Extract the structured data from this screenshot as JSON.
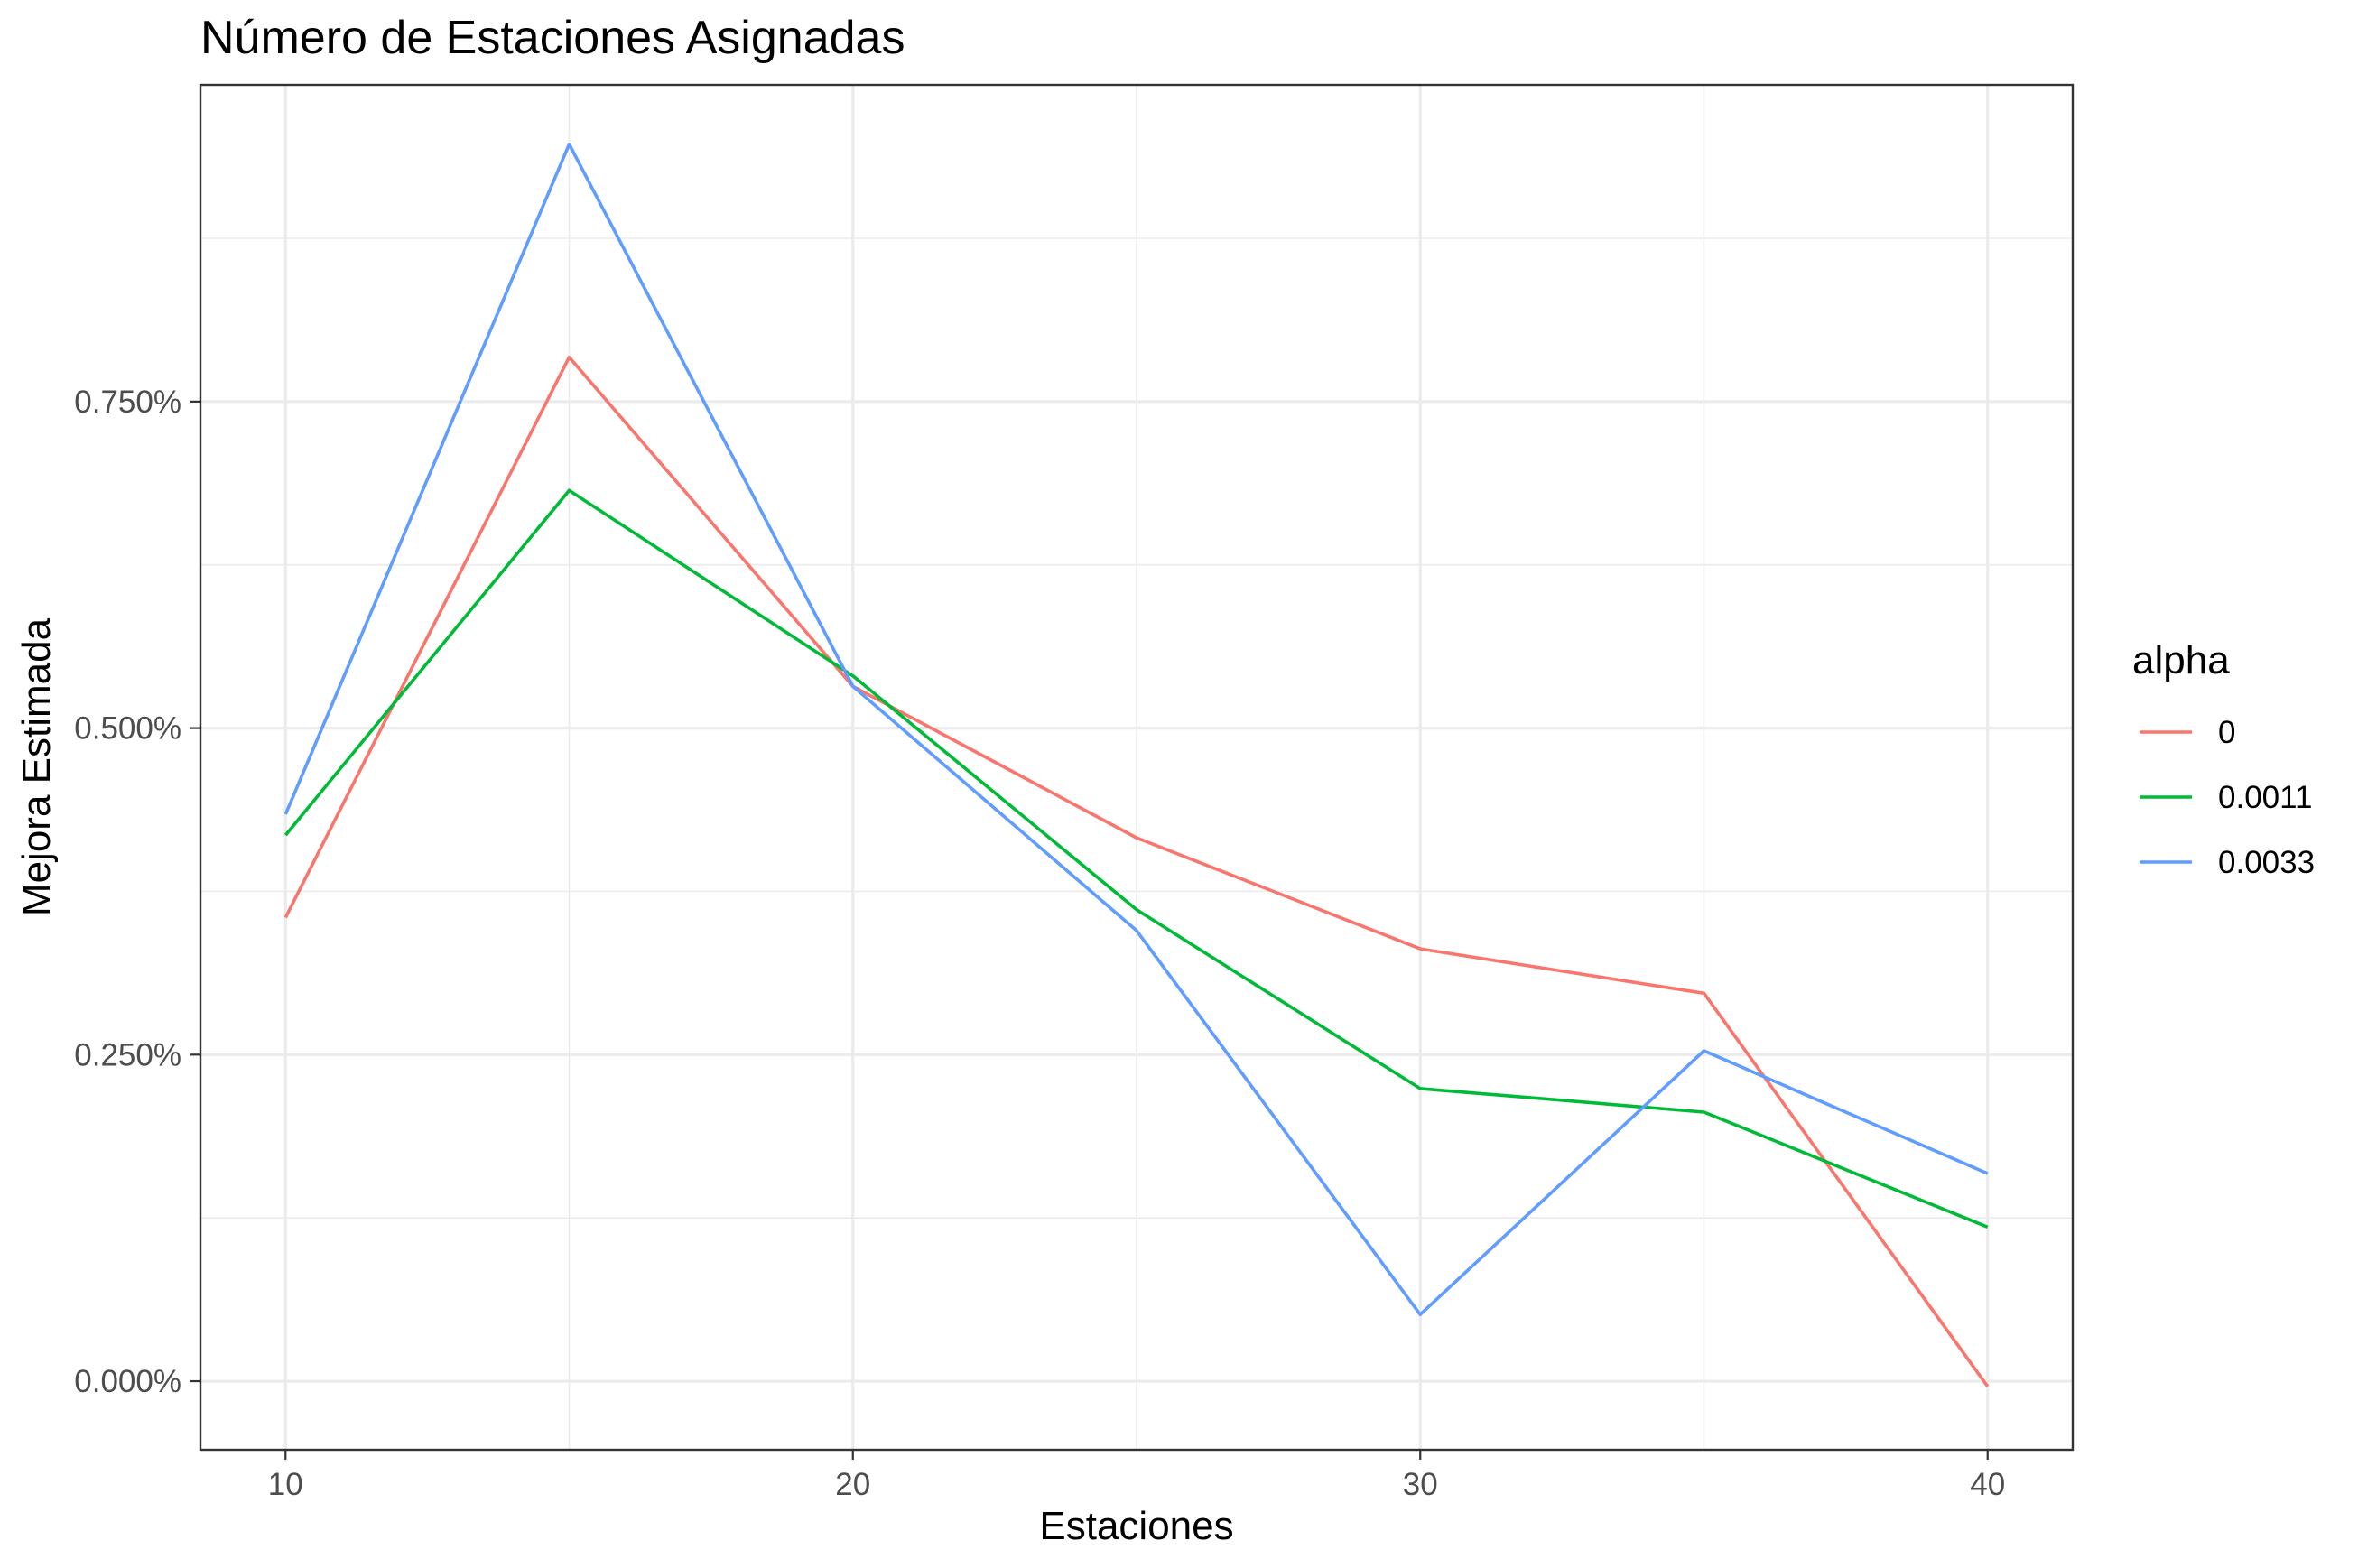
{
  "chart_data": {
    "type": "line",
    "title": "Número de Estaciones Asignadas",
    "xlabel": "Estaciones",
    "ylabel": "Mejora Estimada",
    "x": [
      10,
      15,
      20,
      25,
      30,
      35,
      40
    ],
    "xlim": [
      8.5,
      41.5
    ],
    "xticks": [
      10,
      20,
      30,
      40
    ],
    "xtick_labels": [
      "10",
      "20",
      "30",
      "40"
    ],
    "ylim": [
      -0.0525,
      0.9925
    ],
    "yticks": [
      0,
      0.25,
      0.5,
      0.75
    ],
    "ytick_labels": [
      "0.000%",
      "0.250%",
      "0.500%",
      "0.750%"
    ],
    "ytick_minor": [
      0.125,
      0.375,
      0.625,
      0.875
    ],
    "yunit": "%",
    "grid": true,
    "legend": {
      "title": "alpha",
      "position": "right"
    },
    "series": [
      {
        "name": "0",
        "color": "#F8766D",
        "values": [
          0.355,
          0.784,
          0.532,
          0.416,
          0.331,
          0.297,
          -0.004
        ]
      },
      {
        "name": "0.0011",
        "color": "#00BA38",
        "values": [
          0.418,
          0.682,
          0.54,
          0.361,
          0.224,
          0.206,
          0.118
        ]
      },
      {
        "name": "0.0033",
        "color": "#619CFF",
        "values": [
          0.434,
          0.947,
          0.532,
          0.345,
          0.051,
          0.253,
          0.159
        ]
      }
    ]
  }
}
